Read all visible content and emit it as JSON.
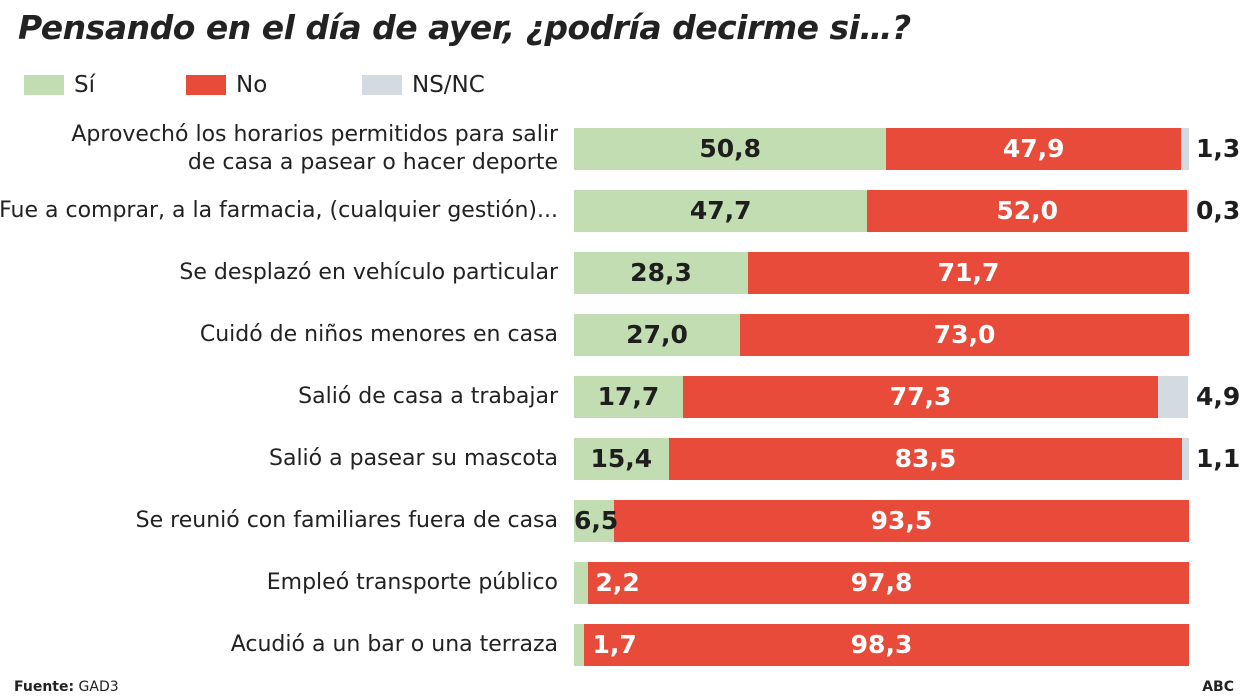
{
  "chart_data": {
    "type": "bar",
    "orientation": "horizontal",
    "stacked": true,
    "title": "Pensando en el día de ayer, ¿podría decirme si…?",
    "legend_position": "top-left",
    "categories": [
      [
        "Aprovechó los horarios permitidos para salir",
        "de casa a pasear o hacer deporte"
      ],
      [
        "Fue a comprar, a la farmacia, (cualquier gestión)..."
      ],
      [
        "Se desplazó en vehículo particular"
      ],
      [
        "Cuidó de niños menores en casa"
      ],
      [
        "Salió de casa a trabajar"
      ],
      [
        "Salió a pasear su mascota"
      ],
      [
        "Se reunió con familiares fuera de casa"
      ],
      [
        "Empleó transporte público"
      ],
      [
        "Acudió a un bar o una terraza"
      ]
    ],
    "series": [
      {
        "name": "Sí",
        "color": "#c1ddb1",
        "values": [
          50.8,
          47.7,
          28.3,
          27.0,
          17.7,
          15.4,
          6.5,
          2.2,
          1.7
        ],
        "labels": [
          "50,8",
          "47,7",
          "28,3",
          "27,0",
          "17,7",
          "15,4",
          "6,5",
          "2,2",
          "1,7"
        ]
      },
      {
        "name": "No",
        "color": "#e84b3a",
        "values": [
          47.9,
          52.0,
          71.7,
          73.0,
          77.3,
          83.5,
          93.5,
          97.8,
          98.3
        ],
        "labels": [
          "47,9",
          "52,0",
          "71,7",
          "73,0",
          "77,3",
          "83,5",
          "93,5",
          "97,8",
          "98,3"
        ]
      },
      {
        "name": "NS/NC",
        "color": "#d3dbe1",
        "values": [
          1.3,
          0.3,
          null,
          null,
          4.9,
          1.1,
          null,
          null,
          null
        ],
        "labels": [
          "1,3",
          "0,3",
          null,
          null,
          "4,9",
          "1,1",
          null,
          null,
          null
        ]
      }
    ],
    "xlim": [
      0,
      100
    ],
    "grid": false
  },
  "footer": {
    "source_label": "Fuente:",
    "source": "GAD3",
    "brand": "ABC"
  }
}
